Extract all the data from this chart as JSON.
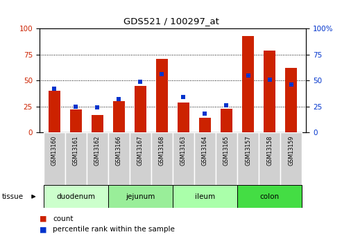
{
  "title": "GDS521 / 100297_at",
  "samples": [
    "GSM13160",
    "GSM13161",
    "GSM13162",
    "GSM13166",
    "GSM13167",
    "GSM13168",
    "GSM13163",
    "GSM13164",
    "GSM13165",
    "GSM13157",
    "GSM13158",
    "GSM13159"
  ],
  "count_values": [
    40,
    22,
    17,
    30,
    45,
    71,
    29,
    14,
    23,
    93,
    79,
    62
  ],
  "percentile_values": [
    42,
    25,
    24,
    32,
    49,
    56,
    34,
    18,
    26,
    55,
    51,
    46
  ],
  "bar_color": "#cc2200",
  "marker_color": "#0033cc",
  "tissue_groups": [
    {
      "label": "duodenum",
      "start": 0,
      "end": 2,
      "color": "#ccffcc"
    },
    {
      "label": "jejunum",
      "start": 3,
      "end": 5,
      "color": "#99ee99"
    },
    {
      "label": "ileum",
      "start": 6,
      "end": 8,
      "color": "#aaffaa"
    },
    {
      "label": "colon",
      "start": 9,
      "end": 11,
      "color": "#44dd44"
    }
  ],
  "ylim": [
    0,
    100
  ],
  "yticks": [
    0,
    25,
    50,
    75,
    100
  ],
  "right_ytick_labels": [
    "0",
    "25",
    "50",
    "75",
    "100%"
  ],
  "grid_color": "black",
  "legend_items": [
    "count",
    "percentile rank within the sample"
  ],
  "tick_label_color_left": "#cc2200",
  "tick_label_color_right": "#0033cc",
  "background_plot": "#ffffff",
  "background_label_row": "#d0d0d0"
}
